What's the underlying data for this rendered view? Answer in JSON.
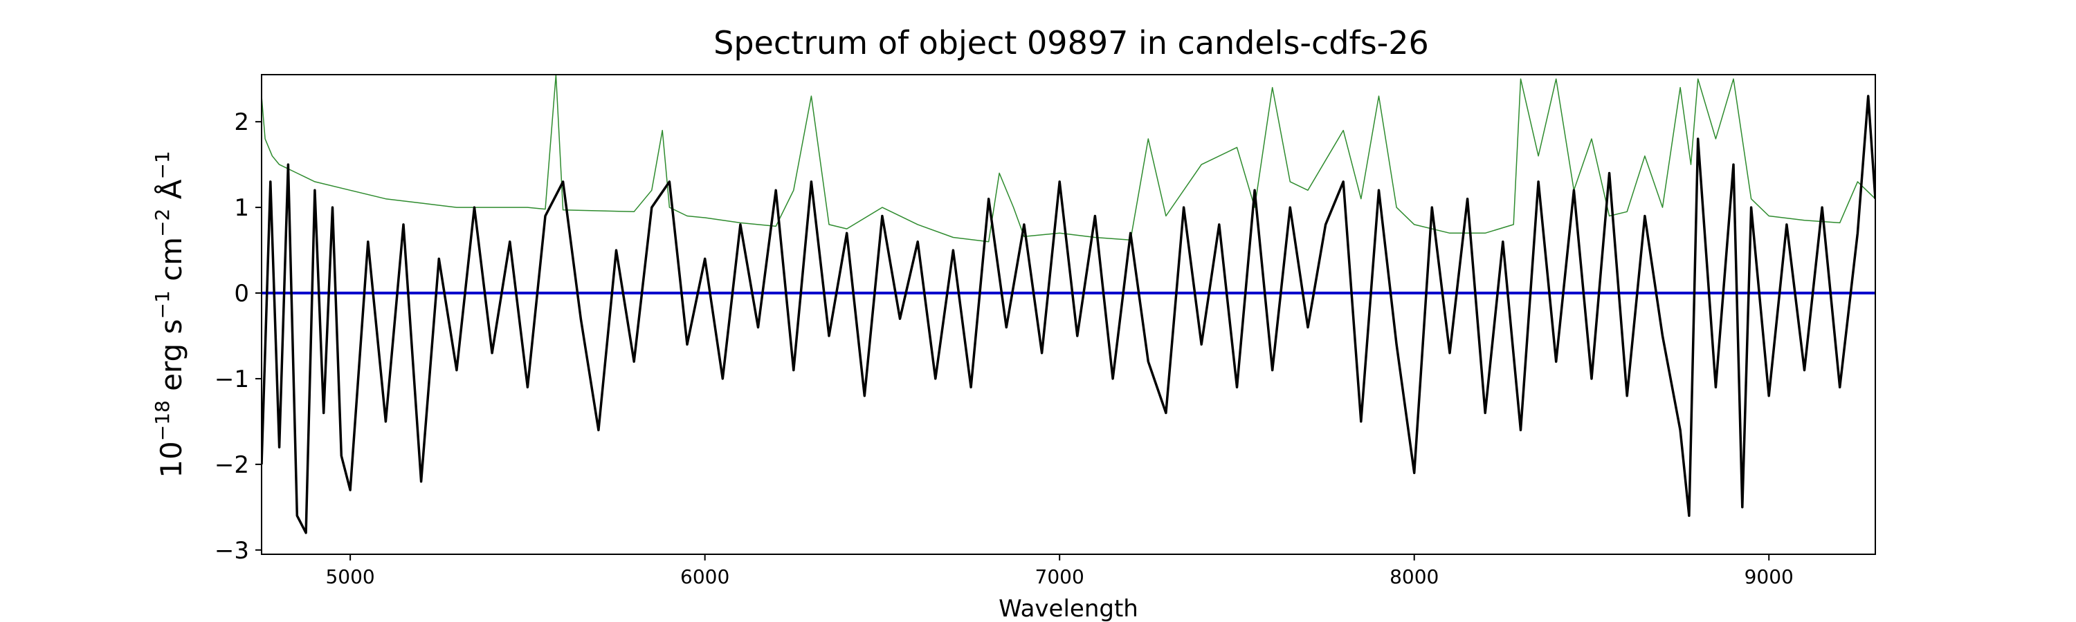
{
  "chart_data": {
    "type": "line",
    "title": "Spectrum of object 09897 in candels-cdfs-26",
    "xlabel": "Wavelength",
    "ylabel_parts": {
      "base1": "10",
      "exp1": "−18",
      "unit_erg": " erg s",
      "exp2": "−1",
      "unit_cm": " cm",
      "exp3": "−2",
      "unit_ang": " Å",
      "exp4": "−1"
    },
    "xlim": [
      4750,
      9300
    ],
    "ylim": [
      -3.05,
      2.55
    ],
    "x_ticks": [
      5000,
      6000,
      7000,
      8000,
      9000
    ],
    "x_tick_labels": [
      "5000",
      "6000",
      "7000",
      "8000",
      "9000"
    ],
    "y_ticks": [
      2,
      1,
      0,
      -1,
      -2,
      -3
    ],
    "y_tick_labels": [
      "2",
      "1",
      "0",
      "−1",
      "−2",
      "−3"
    ],
    "grid": false,
    "legend": "none",
    "colors": {
      "flux": "#000000",
      "noise": "#2e8b2e",
      "zero_line": "#0000cc"
    },
    "series": [
      {
        "role": "flux",
        "x": [
          4750,
          4775,
          4800,
          4825,
          4850,
          4875,
          4900,
          4925,
          4950,
          4975,
          5000,
          5050,
          5100,
          5150,
          5200,
          5250,
          5300,
          5350,
          5400,
          5450,
          5500,
          5550,
          5600,
          5650,
          5700,
          5750,
          5800,
          5850,
          5900,
          5950,
          6000,
          6050,
          6100,
          6150,
          6200,
          6250,
          6300,
          6350,
          6400,
          6450,
          6500,
          6550,
          6600,
          6650,
          6700,
          6750,
          6800,
          6850,
          6900,
          6950,
          7000,
          7050,
          7100,
          7150,
          7200,
          7250,
          7300,
          7350,
          7400,
          7450,
          7500,
          7550,
          7600,
          7650,
          7700,
          7750,
          7800,
          7850,
          7900,
          7950,
          8000,
          8050,
          8100,
          8150,
          8200,
          8250,
          8300,
          8350,
          8400,
          8450,
          8500,
          8550,
          8600,
          8650,
          8700,
          8750,
          8775,
          8800,
          8850,
          8900,
          8925,
          8950,
          9000,
          9050,
          9100,
          9150,
          9200,
          9250,
          9280,
          9300
        ],
        "y": [
          -2.0,
          1.3,
          -1.8,
          1.5,
          -2.6,
          -2.8,
          1.2,
          -1.4,
          1.0,
          -1.9,
          -2.3,
          0.6,
          -1.5,
          0.8,
          -2.2,
          0.4,
          -0.9,
          1.0,
          -0.7,
          0.6,
          -1.1,
          0.9,
          1.3,
          -0.3,
          -1.6,
          0.5,
          -0.8,
          1.0,
          1.3,
          -0.6,
          0.4,
          -1.0,
          0.8,
          -0.4,
          1.2,
          -0.9,
          1.3,
          -0.5,
          0.7,
          -1.2,
          0.9,
          -0.3,
          0.6,
          -1.0,
          0.5,
          -1.1,
          1.1,
          -0.4,
          0.8,
          -0.7,
          1.3,
          -0.5,
          0.9,
          -1.0,
          0.7,
          -0.8,
          -1.4,
          1.0,
          -0.6,
          0.8,
          -1.1,
          1.2,
          -0.9,
          1.0,
          -0.4,
          0.8,
          1.3,
          -1.5,
          1.2,
          -0.6,
          -2.1,
          1.0,
          -0.7,
          1.1,
          -1.4,
          0.6,
          -1.6,
          1.3,
          -0.8,
          1.2,
          -1.0,
          1.4,
          -1.2,
          0.9,
          -0.5,
          -1.6,
          -2.6,
          1.8,
          -1.1,
          1.5,
          -2.5,
          1.0,
          -1.2,
          0.8,
          -0.9,
          1.0,
          -1.1,
          0.7,
          2.3,
          1.1
        ]
      },
      {
        "role": "noise",
        "x": [
          4750,
          4760,
          4780,
          4800,
          4850,
          4900,
          5000,
          5100,
          5200,
          5300,
          5400,
          5500,
          5550,
          5580,
          5600,
          5700,
          5800,
          5850,
          5880,
          5900,
          5950,
          6000,
          6100,
          6200,
          6250,
          6300,
          6350,
          6400,
          6500,
          6600,
          6700,
          6800,
          6830,
          6870,
          6900,
          7000,
          7100,
          7200,
          7250,
          7300,
          7400,
          7500,
          7550,
          7600,
          7650,
          7700,
          7800,
          7850,
          7900,
          7950,
          8000,
          8100,
          8200,
          8280,
          8300,
          8350,
          8400,
          8450,
          8500,
          8550,
          8600,
          8650,
          8700,
          8750,
          8780,
          8800,
          8850,
          8900,
          8950,
          9000,
          9100,
          9200,
          9250,
          9300
        ],
        "y": [
          2.3,
          1.8,
          1.6,
          1.5,
          1.4,
          1.3,
          1.2,
          1.1,
          1.05,
          1.0,
          1.0,
          1.0,
          0.98,
          2.55,
          0.97,
          0.96,
          0.95,
          1.2,
          1.9,
          1.0,
          0.9,
          0.88,
          0.82,
          0.78,
          1.2,
          2.3,
          0.8,
          0.75,
          1.0,
          0.8,
          0.65,
          0.6,
          1.4,
          1.0,
          0.66,
          0.7,
          0.65,
          0.62,
          1.8,
          0.9,
          1.5,
          1.7,
          1.0,
          2.4,
          1.3,
          1.2,
          1.9,
          1.1,
          2.3,
          1.0,
          0.8,
          0.7,
          0.7,
          0.8,
          2.5,
          1.6,
          2.5,
          1.2,
          1.8,
          0.9,
          0.95,
          1.6,
          1.0,
          2.4,
          1.5,
          2.5,
          1.8,
          2.5,
          1.1,
          0.9,
          0.85,
          0.82,
          1.3,
          1.1
        ]
      },
      {
        "role": "zero_line",
        "x": [
          4750,
          9300
        ],
        "y": [
          0,
          0
        ]
      }
    ]
  }
}
